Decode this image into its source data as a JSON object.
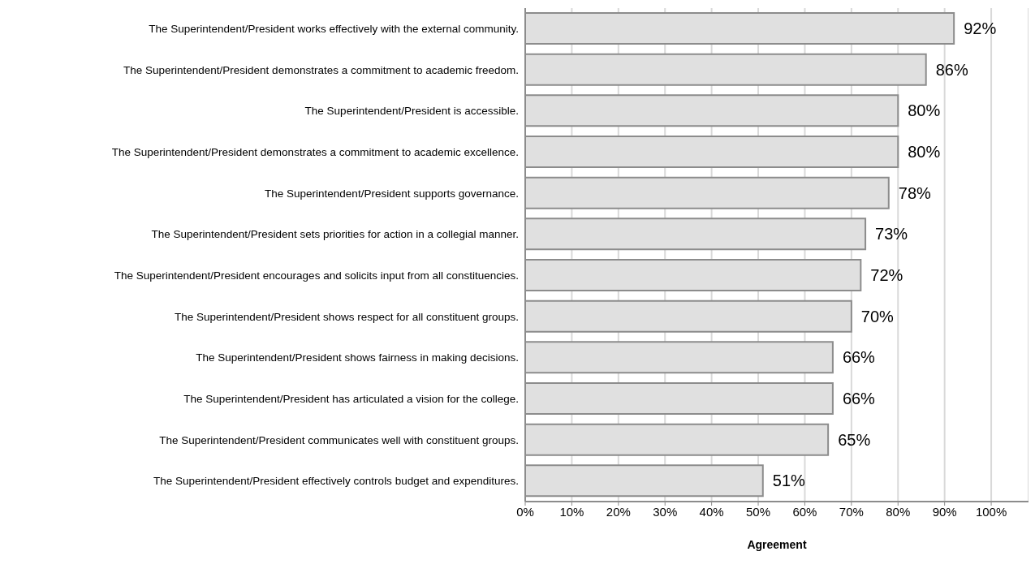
{
  "chart_data": {
    "type": "bar",
    "orientation": "horizontal",
    "xlabel": "Agreement",
    "categories": [
      "The Superintendent/President works effectively with the external community.",
      "The Superintendent/President demonstrates a commitment to academic freedom.",
      "The Superintendent/President is accessible.",
      "The Superintendent/President demonstrates a commitment to academic excellence.",
      "The Superintendent/President supports governance.",
      "The Superintendent/President sets priorities for action in a collegial manner.",
      "The Superintendent/President encourages and solicits input from all constituencies.",
      "The Superintendent/President shows respect for all constituent groups.",
      "The Superintendent/President shows fairness in making decisions.",
      "The Superintendent/President has articulated a vision for the college.",
      "The Superintendent/President communicates well with constituent groups.",
      "The Superintendent/President effectively controls budget and expenditures."
    ],
    "values": [
      92,
      86,
      80,
      80,
      78,
      73,
      72,
      70,
      66,
      66,
      65,
      51
    ],
    "value_labels": [
      "92%",
      "86%",
      "80%",
      "80%",
      "78%",
      "73%",
      "72%",
      "70%",
      "66%",
      "66%",
      "65%",
      "51%"
    ],
    "color": "#e0e0e0",
    "xlim": [
      0,
      108
    ],
    "xticks": [
      {
        "value": 0,
        "label": "0%"
      },
      {
        "value": 10,
        "label": "10%"
      },
      {
        "value": 20,
        "label": "20%"
      },
      {
        "value": 30,
        "label": "30%"
      },
      {
        "value": 40,
        "label": "40%"
      },
      {
        "value": 50,
        "label": "50%"
      },
      {
        "value": 60,
        "label": "60%"
      },
      {
        "value": 70,
        "label": "70%"
      },
      {
        "value": 80,
        "label": "80%"
      },
      {
        "value": 90,
        "label": "90%"
      },
      {
        "value": 100,
        "label": "100%"
      }
    ],
    "grid": "x"
  }
}
